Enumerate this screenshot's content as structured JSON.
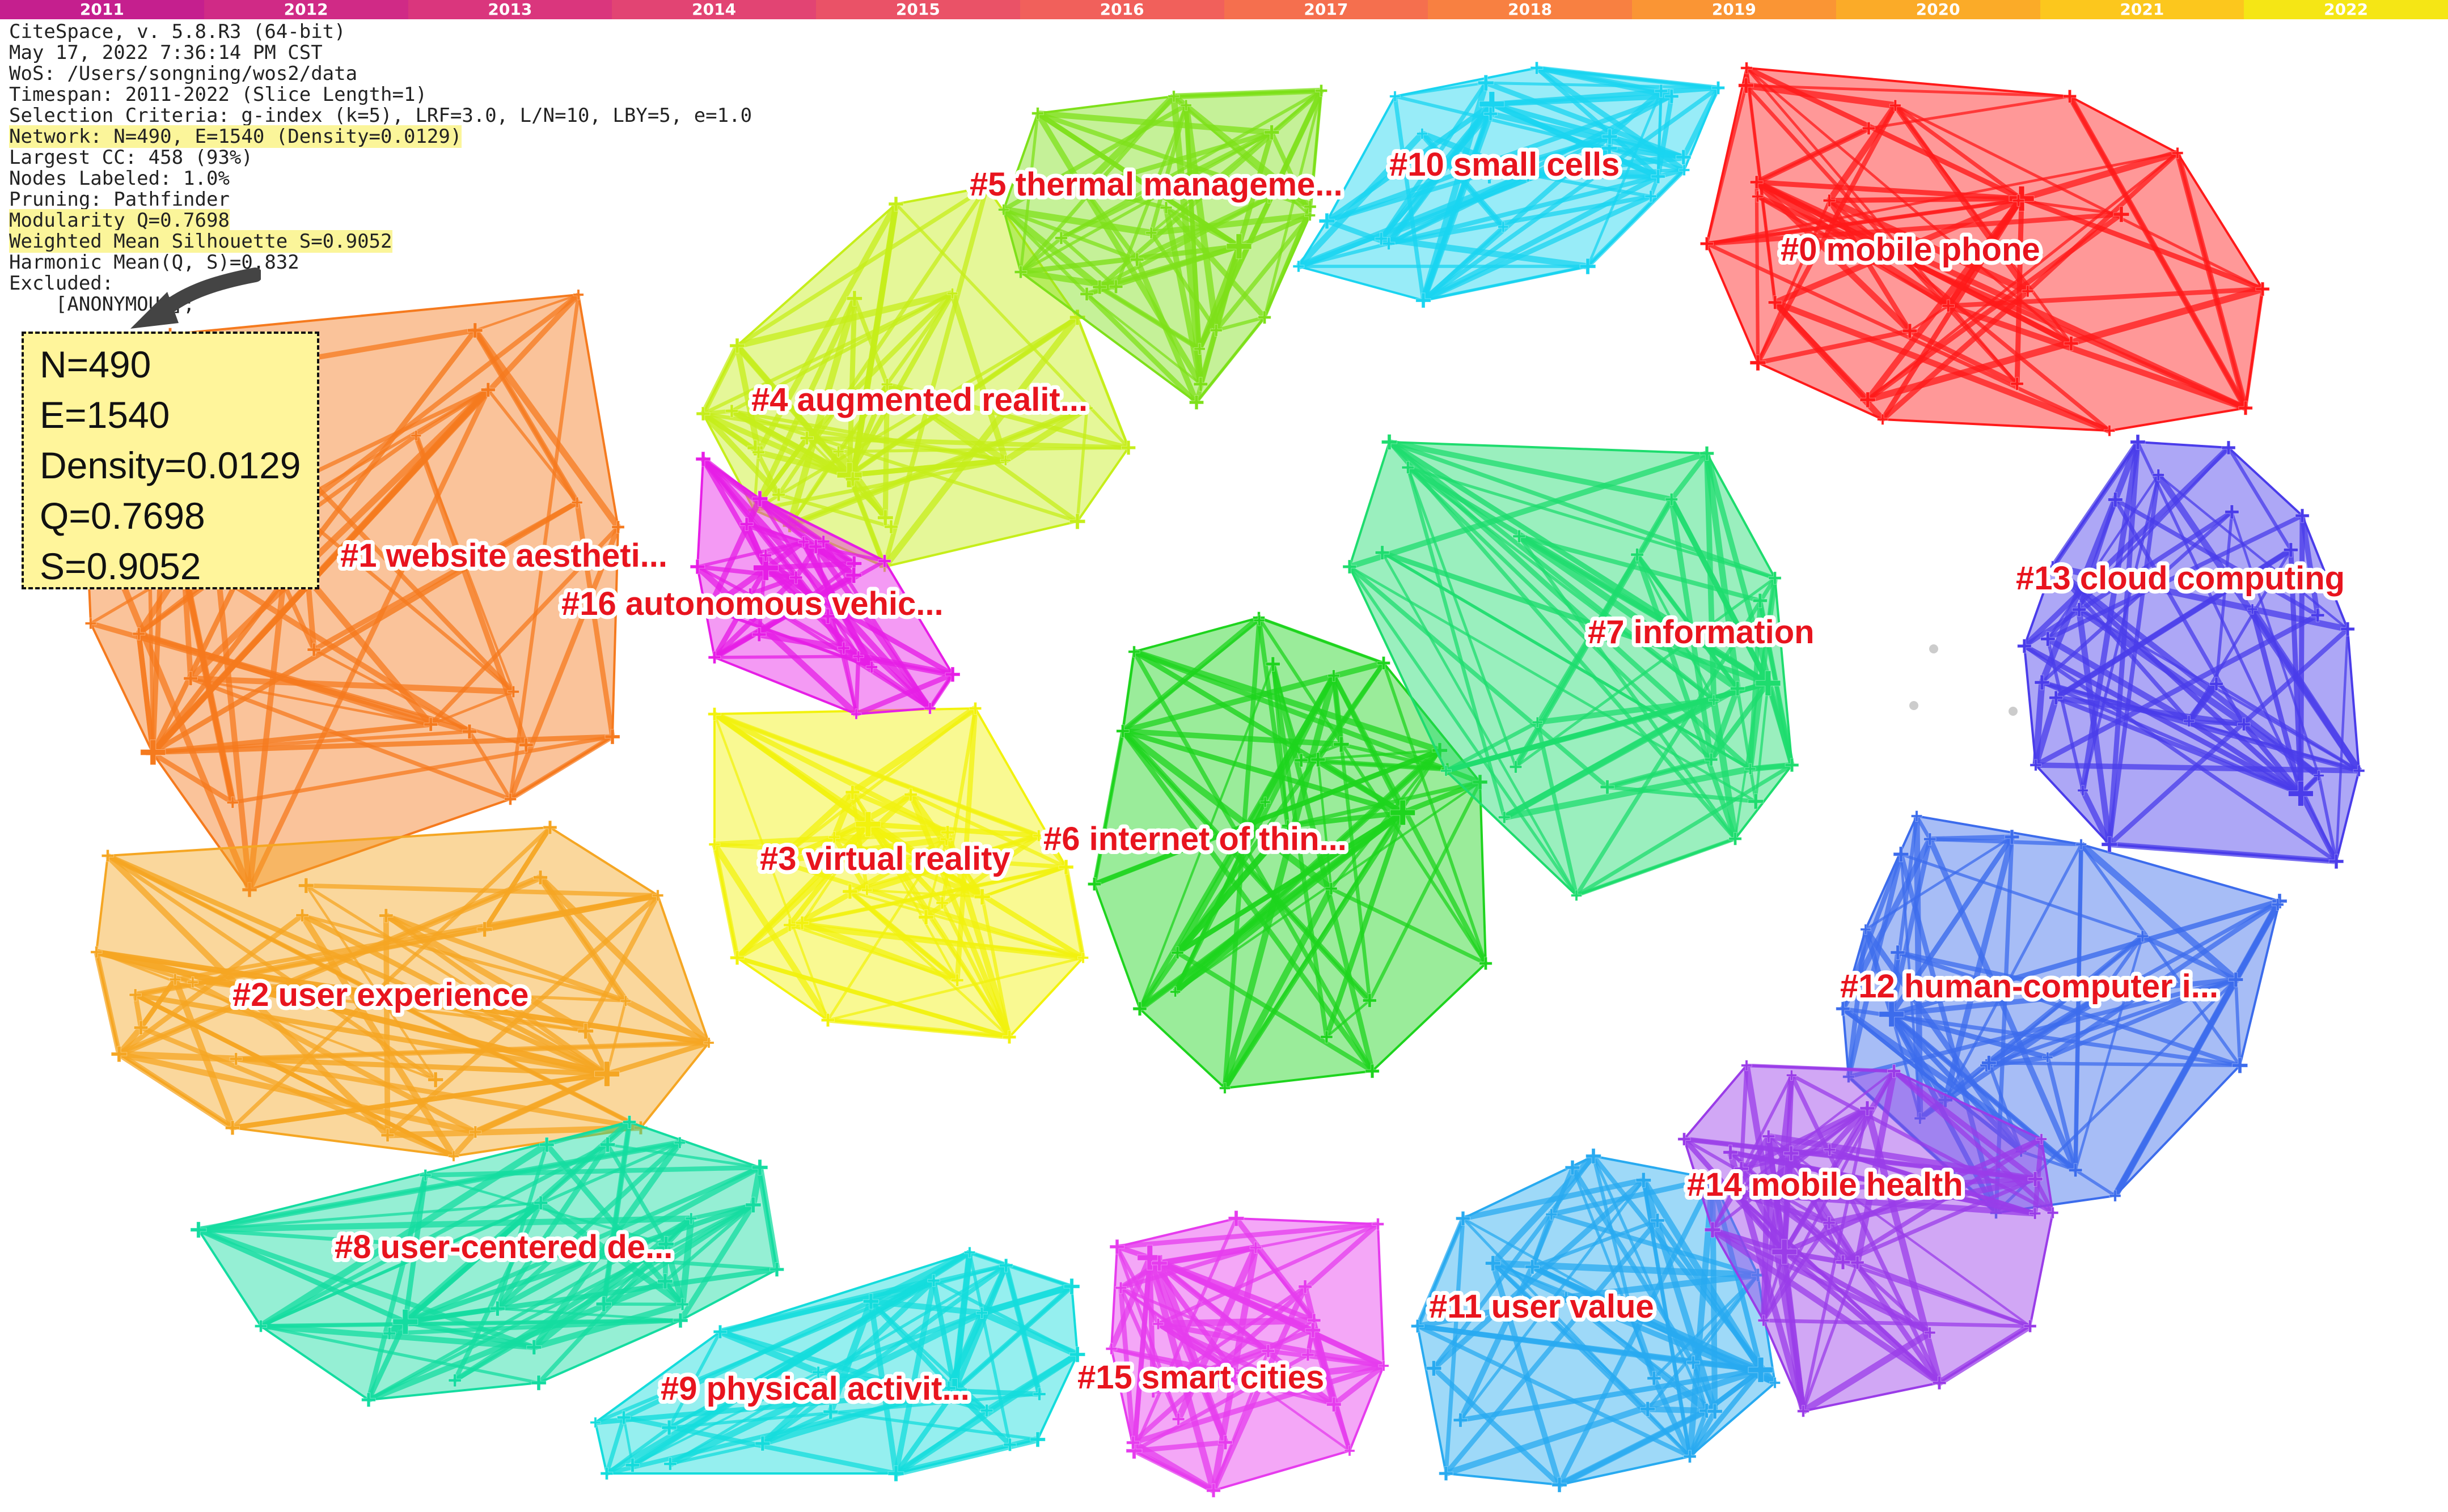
{
  "timeline": {
    "years": [
      "2011",
      "2012",
      "2013",
      "2014",
      "2015",
      "2016",
      "2017",
      "2018",
      "2019",
      "2020",
      "2021",
      "2022"
    ],
    "colors": [
      "#c51f8e",
      "#d02a86",
      "#da367d",
      "#e24473",
      "#ea5267",
      "#f1605b",
      "#f56f4e",
      "#f88041",
      "#fa9534",
      "#fbab28",
      "#fcc71d",
      "#f5e615"
    ]
  },
  "info": {
    "lines": [
      "CiteSpace, v. 5.8.R3 (64-bit)",
      "May 17, 2022 7:36:14 PM CST",
      "WoS: /Users/songning/wos2/data",
      "Timespan: 2011-2022 (Slice Length=1)",
      "Selection Criteria: g-index (k=5), LRF=3.0, L/N=10, LBY=5, e=1.0",
      "Network: N=490, E=1540 (Density=0.0129)",
      "Largest CC: 458 (93%)",
      "Nodes Labeled: 1.0%",
      "Pruning: Pathfinder",
      "Modularity Q=0.7698",
      "Weighted Mean Silhouette S=0.9052",
      "Harmonic Mean(Q, S)=0.832",
      "Excluded:",
      "    [ANONYMOUS];"
    ],
    "highlighted_lines": [
      5,
      9,
      10
    ]
  },
  "stats": [
    "N=490",
    "E=1540",
    "Density=0.0129",
    "Q=0.7698",
    "S=0.9052"
  ],
  "clusters": [
    {
      "label": "#0 mobile phone",
      "color": "#ff1a1a"
    },
    {
      "label": "#1 website aestheti...",
      "color": "#f57a1e"
    },
    {
      "label": "#2 user experience",
      "color": "#f5a623"
    },
    {
      "label": "#3 virtual reality",
      "color": "#f2f20d"
    },
    {
      "label": "#4 augmented realit...",
      "color": "#c6ee1a"
    },
    {
      "label": "#5 thermal manageme...",
      "color": "#7ee01a"
    },
    {
      "label": "#6 internet of thin...",
      "color": "#1ed41e"
    },
    {
      "label": "#7 information",
      "color": "#1edc6e"
    },
    {
      "label": "#8 user-centered de...",
      "color": "#14dca0"
    },
    {
      "label": "#9 physical activit...",
      "color": "#14dcdc"
    },
    {
      "label": "#10 small cells",
      "color": "#1ad4f0"
    },
    {
      "label": "#11 user value",
      "color": "#28aaf0"
    },
    {
      "label": "#12 human-computer i...",
      "color": "#3c6cec"
    },
    {
      "label": "#13 cloud computing",
      "color": "#4a3cea"
    },
    {
      "label": "#14 mobile health",
      "color": "#9a3ce8"
    },
    {
      "label": "#15 smart cities",
      "color": "#e63cee"
    },
    {
      "label": "#16 autonomous vehic...",
      "color": "#e61ee6"
    }
  ]
}
